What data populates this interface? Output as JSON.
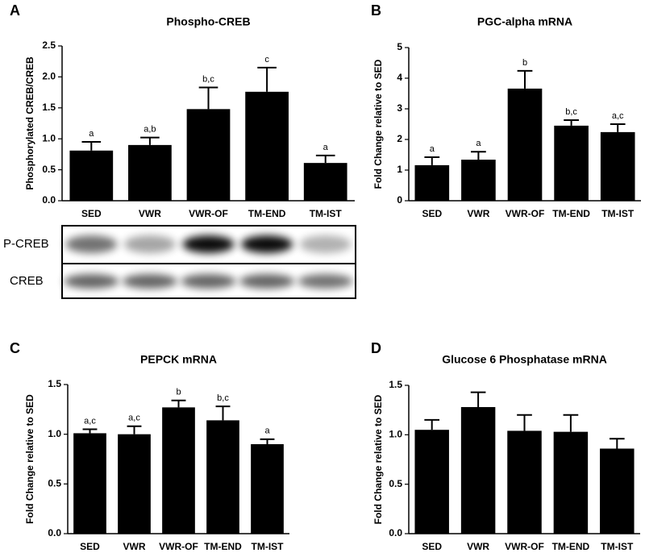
{
  "chart_data": [
    {
      "type": "bar",
      "panel_label": "A",
      "title": "Phospho-CREB",
      "y_label": "Phosphorylated  CREB/CREB",
      "categories": [
        "SED",
        "VWR",
        "VWR-OF",
        "TM-END",
        "TM-IST"
      ],
      "values": [
        0.81,
        0.9,
        1.48,
        1.76,
        0.61
      ],
      "errors": [
        0.14,
        0.12,
        0.35,
        0.39,
        0.12
      ],
      "annotations": [
        "a",
        "a,b",
        "b,c",
        "c",
        "a"
      ],
      "color": "#000000",
      "ylim": [
        0,
        2.5
      ],
      "yticks": [
        {
          "value": 0,
          "label": "0.0"
        },
        0.5,
        {
          "value": 1,
          "label": "1.0"
        },
        1.5,
        {
          "value": 2,
          "label": "2.0"
        },
        2.5
      ],
      "blot_labels": [
        "P-CREB",
        "CREB"
      ]
    },
    {
      "type": "bar",
      "panel_label": "B",
      "title": "PGC-alpha mRNA",
      "y_label": "Fold Change relative to SED",
      "categories": [
        "SED",
        "VWR",
        "VWR-OF",
        "TM-END",
        "TM-IST"
      ],
      "values": [
        1.16,
        1.34,
        3.66,
        2.45,
        2.24
      ],
      "errors": [
        0.26,
        0.26,
        0.58,
        0.18,
        0.26
      ],
      "annotations": [
        "a",
        "a",
        "b",
        "b,c",
        "a,c"
      ],
      "color": "#000000",
      "ylim": [
        0,
        5
      ],
      "yticks": [
        0,
        1,
        2,
        3,
        4,
        5
      ]
    },
    {
      "type": "bar",
      "panel_label": "C",
      "title": "PEPCK mRNA",
      "y_label": "Fold Change relative to SED",
      "categories": [
        "SED",
        "VWR",
        "VWR-OF",
        "TM-END",
        "TM-IST"
      ],
      "values": [
        1.01,
        1.0,
        1.27,
        1.14,
        0.9
      ],
      "errors": [
        0.04,
        0.08,
        0.07,
        0.14,
        0.05
      ],
      "annotations": [
        "a,c",
        "a,c",
        "b",
        "b,c",
        "a"
      ],
      "color": "#000000",
      "ylim": [
        0,
        1.5
      ],
      "yticks": [
        {
          "value": 0,
          "label": "0.0"
        },
        0.5,
        {
          "value": 1,
          "label": "1.0"
        },
        1.5
      ]
    },
    {
      "type": "bar",
      "panel_label": "D",
      "title": "Glucose 6 Phosphatase mRNA",
      "y_label": "Fold Change relative to SED",
      "categories": [
        "SED",
        "VWR",
        "VWR-OF",
        "TM-END",
        "TM-IST"
      ],
      "values": [
        1.05,
        1.28,
        1.04,
        1.03,
        0.86
      ],
      "errors": [
        0.1,
        0.15,
        0.16,
        0.17,
        0.1
      ],
      "color": "#000000",
      "ylim": [
        0,
        1.5
      ],
      "yticks": [
        {
          "value": 0,
          "label": "0.0"
        },
        0.5,
        {
          "value": 1,
          "label": "1.0"
        },
        1.5
      ]
    }
  ]
}
